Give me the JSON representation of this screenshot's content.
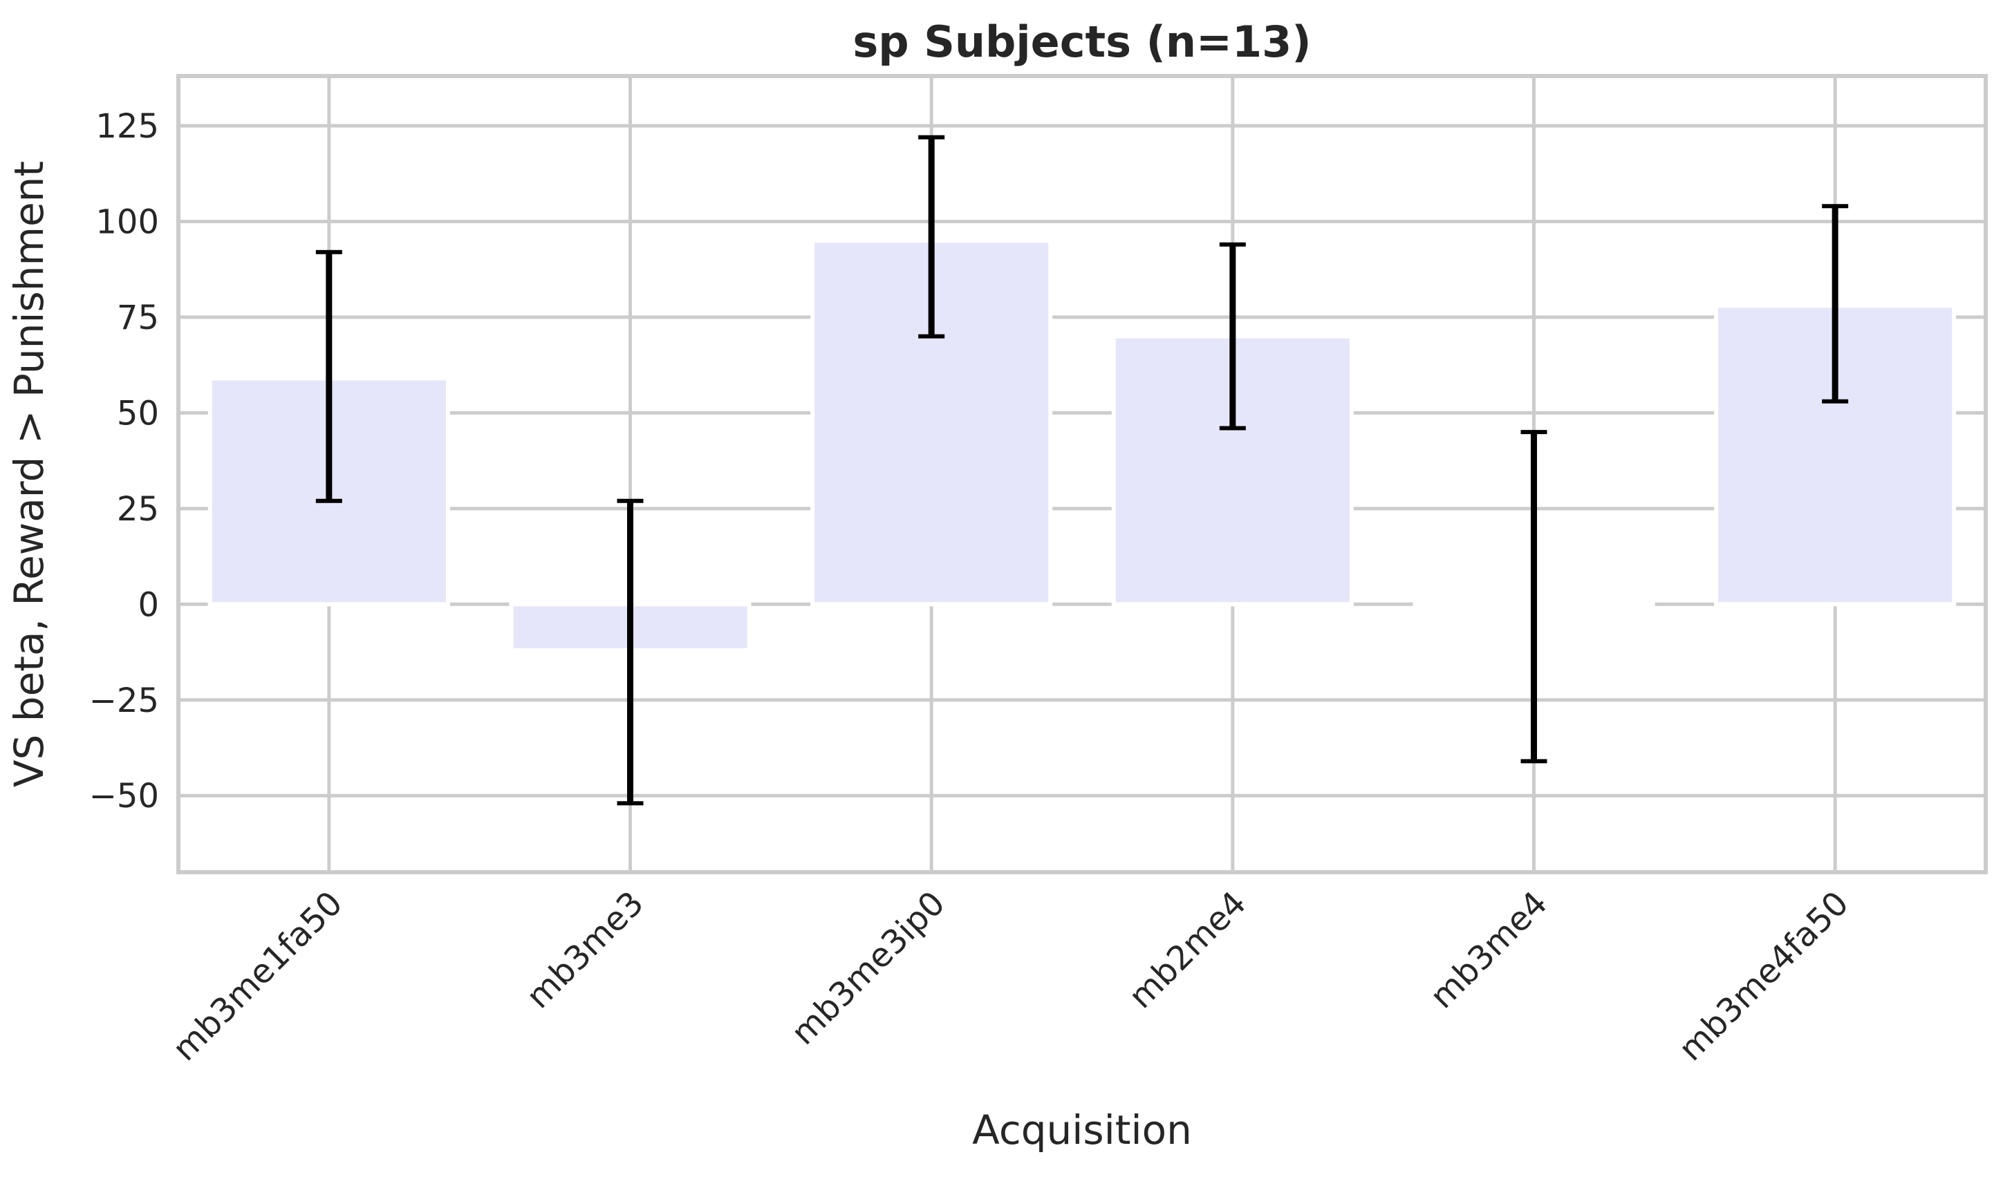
{
  "chart_data": {
    "type": "bar",
    "title": "sp Subjects (n=13)",
    "xlabel": "Acquisition",
    "ylabel": "VS beta, Reward > Punishment",
    "categories": [
      "mb3me1fa50",
      "mb3me3",
      "mb3me3ip0",
      "mb2me4",
      "mb3me4",
      "mb3me4fa50"
    ],
    "values": [
      59,
      -12,
      95,
      70,
      1,
      78
    ],
    "error_low": [
      27,
      -52,
      70,
      46,
      -41,
      53
    ],
    "error_high": [
      92,
      27,
      122,
      94,
      45,
      104
    ],
    "ylim": [
      -70,
      138
    ],
    "yticks": [
      -50,
      -25,
      0,
      25,
      50,
      75,
      100,
      125
    ],
    "ytick_labels": [
      "−50",
      "−25",
      "0",
      "25",
      "50",
      "75",
      "100",
      "125"
    ],
    "grid": true,
    "colors": {
      "bar": "#e6e6fa",
      "errorbar": "#000000",
      "grid": "#cccccc",
      "spine": "#cccccc",
      "background": "#ffffff"
    }
  }
}
